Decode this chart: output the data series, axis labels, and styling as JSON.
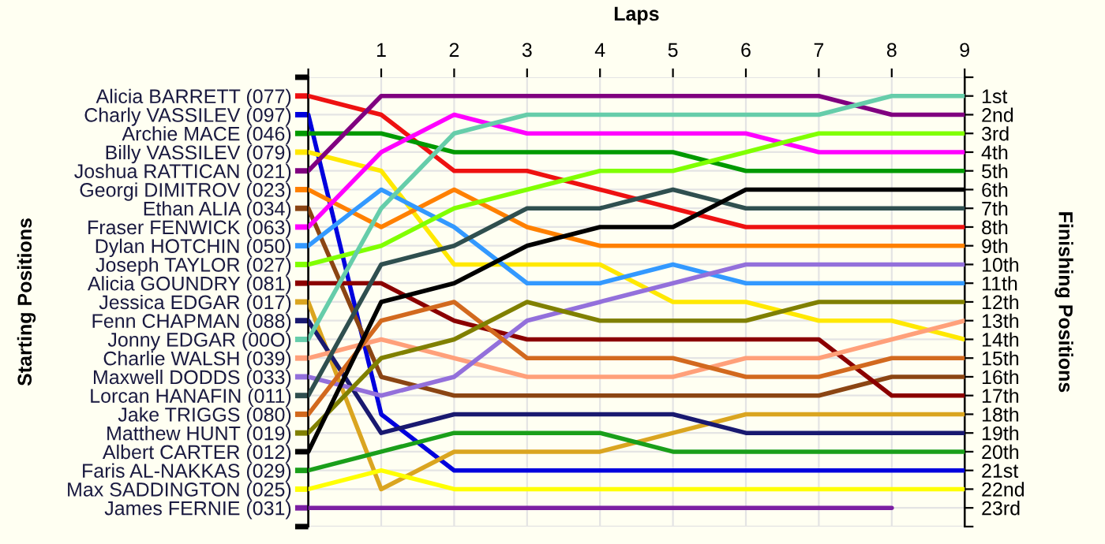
{
  "chart_data": {
    "type": "line",
    "xlabel": "Laps",
    "legend_title": "Starting Positions",
    "legend": "left",
    "y2label": "Finishing Positions",
    "x": [
      0,
      1,
      2,
      3,
      4,
      5,
      6,
      7,
      8,
      9
    ],
    "xlim": [
      0,
      9
    ],
    "xticks": [
      {
        "value": 0,
        "label": null
      },
      1,
      2,
      3,
      4,
      5,
      6,
      7,
      8,
      9
    ],
    "y2lim": [
      24,
      0
    ],
    "y2ticks": [
      {
        "value": 0,
        "label": null
      },
      {
        "value": 1,
        "label": "1st"
      },
      {
        "value": 2,
        "label": "2nd"
      },
      {
        "value": 3,
        "label": "3rd"
      },
      {
        "value": 4,
        "label": "4th"
      },
      {
        "value": 5,
        "label": "5th"
      },
      {
        "value": 6,
        "label": "6th"
      },
      {
        "value": 7,
        "label": "7th"
      },
      {
        "value": 8,
        "label": "8th"
      },
      {
        "value": 9,
        "label": "9th"
      },
      {
        "value": 10,
        "label": "10th"
      },
      {
        "value": 11,
        "label": "11th"
      },
      {
        "value": 12,
        "label": "12th"
      },
      {
        "value": 13,
        "label": "13th"
      },
      {
        "value": 14,
        "label": "14th"
      },
      {
        "value": 15,
        "label": "15th"
      },
      {
        "value": 16,
        "label": "16th"
      },
      {
        "value": 17,
        "label": "17th"
      },
      {
        "value": 18,
        "label": "18th"
      },
      {
        "value": 19,
        "label": "19th"
      },
      {
        "value": 20,
        "label": "20th"
      },
      {
        "value": 21,
        "label": "21st"
      },
      {
        "value": 22,
        "label": "22nd"
      },
      {
        "value": 23,
        "label": "23rd"
      },
      {
        "value": 24,
        "label": null
      }
    ],
    "grid": true,
    "marker": "none",
    "line_style": "solid",
    "series": [
      {
        "name": "Alicia BARRETT (077)",
        "axis": "y2",
        "color": "#ee1111",
        "values": [
          1,
          2,
          5,
          5,
          6,
          7,
          8,
          8,
          8,
          8
        ]
      },
      {
        "name": "Charly VASSILEV (097)",
        "axis": "y2",
        "color": "#0000dd",
        "values": [
          2,
          18,
          21,
          21,
          21,
          21,
          21,
          21,
          21,
          21
        ]
      },
      {
        "name": "Archie MACE (046)",
        "axis": "y2",
        "color": "#009900",
        "values": [
          3,
          3,
          4,
          4,
          4,
          4,
          5,
          5,
          5,
          5
        ]
      },
      {
        "name": "Billy VASSILEV (079)",
        "axis": "y2",
        "color": "#ffe800",
        "values": [
          4,
          5,
          10,
          10,
          10,
          12,
          12,
          13,
          13,
          14
        ]
      },
      {
        "name": "Joshua RATTICAN (021)",
        "axis": "y2",
        "color": "#800080",
        "values": [
          5,
          1,
          1,
          1,
          1,
          1,
          1,
          1,
          2,
          2
        ]
      },
      {
        "name": "Georgi DIMITROV (023)",
        "axis": "y2",
        "color": "#ff8000",
        "values": [
          6,
          8,
          6,
          8,
          9,
          9,
          9,
          9,
          9,
          9
        ]
      },
      {
        "name": "Ethan ALIA (034)",
        "axis": "y2",
        "color": "#8b4513",
        "values": [
          7,
          16,
          17,
          17,
          17,
          17,
          17,
          17,
          16,
          16
        ]
      },
      {
        "name": "Fraser FENWICK (063)",
        "axis": "y2",
        "color": "#ff00ff",
        "values": [
          8,
          4,
          2,
          3,
          3,
          3,
          3,
          4,
          4,
          4
        ]
      },
      {
        "name": "Dylan HOTCHIN (050)",
        "axis": "y2",
        "color": "#3399ff",
        "values": [
          9,
          6,
          8,
          11,
          11,
          10,
          11,
          11,
          11,
          11
        ]
      },
      {
        "name": "Joseph TAYLOR (027)",
        "axis": "y2",
        "color": "#80ff00",
        "values": [
          10,
          9,
          7,
          6,
          5,
          5,
          4,
          3,
          3,
          3
        ]
      },
      {
        "name": "Alicia GOUNDRY (081)",
        "axis": "y2",
        "color": "#8b0000",
        "values": [
          11,
          11,
          13,
          14,
          14,
          14,
          14,
          14,
          17,
          17
        ]
      },
      {
        "name": "Jessica EDGAR (017)",
        "axis": "y2",
        "color": "#daa520",
        "values": [
          12,
          22,
          20,
          20,
          20,
          19,
          18,
          18,
          18,
          18
        ]
      },
      {
        "name": "Fenn CHAPMAN (088)",
        "axis": "y2",
        "color": "#191970",
        "values": [
          13,
          19,
          18,
          18,
          18,
          18,
          19,
          19,
          19,
          19
        ]
      },
      {
        "name": "Jonny EDGAR (00O)",
        "axis": "y2",
        "color": "#66cdaa",
        "values": [
          14,
          7,
          3,
          2,
          2,
          2,
          2,
          2,
          1,
          1
        ]
      },
      {
        "name": "Charlie WALSH (039)",
        "axis": "y2",
        "color": "#ffa07a",
        "values": [
          15,
          14,
          15,
          16,
          16,
          16,
          15,
          15,
          14,
          13
        ]
      },
      {
        "name": "Maxwell DODDS (033)",
        "axis": "y2",
        "color": "#9370db",
        "values": [
          16,
          17,
          16,
          13,
          12,
          11,
          10,
          10,
          10,
          10
        ]
      },
      {
        "name": "Lorcan HANAFIN (011)",
        "axis": "y2",
        "color": "#2f4f4f",
        "values": [
          17,
          10,
          9,
          7,
          7,
          6,
          7,
          7,
          7,
          7
        ]
      },
      {
        "name": "Jake TRIGGS (080)",
        "axis": "y2",
        "color": "#d2691e",
        "values": [
          18,
          13,
          12,
          15,
          15,
          15,
          16,
          16,
          15,
          15
        ]
      },
      {
        "name": "Matthew HUNT (019)",
        "axis": "y2",
        "color": "#808000",
        "values": [
          19,
          15,
          14,
          12,
          13,
          13,
          13,
          12,
          12,
          12
        ]
      },
      {
        "name": "Albert CARTER (012)",
        "axis": "y2",
        "color": "#000000",
        "values": [
          20,
          12,
          11,
          9,
          8,
          8,
          6,
          6,
          6,
          6
        ]
      },
      {
        "name": "Faris AL-NAKKAS (029)",
        "axis": "y2",
        "color": "#1a9f1a",
        "values": [
          21,
          20,
          19,
          19,
          19,
          20,
          20,
          20,
          20,
          20
        ]
      },
      {
        "name": "Max SADDINGTON (025)",
        "axis": "y2",
        "color": "#ffff00",
        "values": [
          22,
          21,
          22,
          22,
          22,
          22,
          22,
          22,
          22,
          22
        ]
      },
      {
        "name": "James FERNIE (031)",
        "axis": "y2",
        "color": "#7b1fa2",
        "values": [
          23,
          23,
          23,
          23,
          23,
          23,
          23,
          23,
          23,
          null
        ]
      }
    ]
  }
}
